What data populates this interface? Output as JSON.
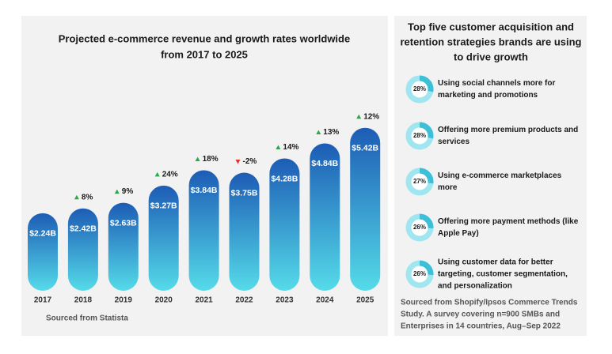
{
  "chart_data": [
    {
      "type": "bar",
      "title": [
        "Projected e-commerce revenue and growth rates worldwide",
        "from 2017 to 2025"
      ],
      "categories": [
        "2017",
        "2018",
        "2019",
        "2020",
        "2021",
        "2022",
        "2023",
        "2024",
        "2025"
      ],
      "values": [
        2.24,
        2.42,
        2.63,
        3.27,
        3.84,
        3.75,
        4.28,
        4.84,
        5.42
      ],
      "value_labels": [
        "$2.24B",
        "$2.42B",
        "$2.63B",
        "$3.27B",
        "$3.84B",
        "$3.75B",
        "$4.28B",
        "$4.84B",
        "$5.42B"
      ],
      "growth": {
        "values": [
          null,
          8,
          9,
          24,
          18,
          -2,
          14,
          13,
          12
        ],
        "value_labels": [
          null,
          "8%",
          "9%",
          "24%",
          "18%",
          "-2%",
          "14%",
          "13%",
          "12%"
        ]
      },
      "colors": [
        "#1d5cb5",
        "#55dbe9"
      ],
      "source": "Sourced from Statista"
    },
    {
      "type": "donut-list",
      "title": [
        "Top five customer acquisition and",
        "retention strategies brands are using",
        "to drive growth"
      ],
      "categories": [
        [
          "Using social channels more for",
          "marketing and promotions"
        ],
        [
          "Offering more premium products and",
          "services"
        ],
        [
          "Using e-commerce marketplaces",
          "more"
        ],
        [
          "Offering more payment methods (like",
          "Apple Pay)"
        ],
        [
          "Using customer data for better",
          "targeting, customer segmentation,",
          "and personalization"
        ]
      ],
      "values": [
        28,
        28,
        27,
        26,
        26
      ],
      "value_labels": [
        "28%",
        "28%",
        "27%",
        "26%",
        "26%"
      ],
      "color": "#3dbfd8",
      "source": [
        "Sourced from Shopify/Ipsos Commerce Trends",
        "Study. A survey covering n=900 SMBs and",
        "Enterprises in 14 countries, Aug–Sep 2022"
      ]
    }
  ]
}
